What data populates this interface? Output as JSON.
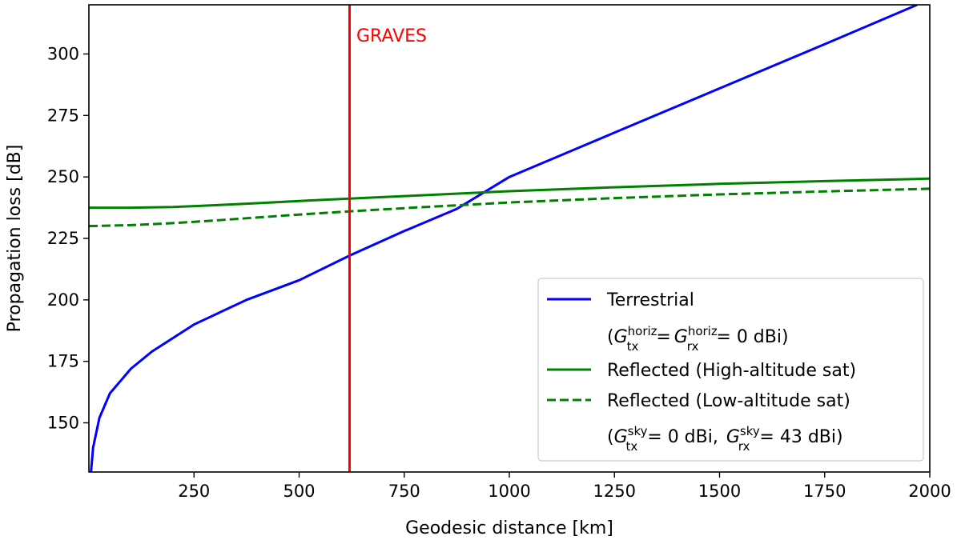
{
  "chart_data": {
    "type": "line",
    "title": "",
    "xlabel": "Geodesic distance [km]",
    "ylabel": "Propagation loss [dB]",
    "xlim": [
      0,
      2000
    ],
    "ylim": [
      130,
      320
    ],
    "xticks": [
      250,
      500,
      750,
      1000,
      1250,
      1500,
      1750,
      2000
    ],
    "yticks": [
      150,
      175,
      200,
      225,
      250,
      275,
      300
    ],
    "grid": false,
    "legend_position": "lower-right",
    "series": [
      {
        "name": "Terrestrial",
        "color": "#0000ff",
        "style": "solid",
        "x": [
          5,
          10,
          25,
          50,
          100,
          150,
          250,
          375,
          500,
          620,
          750,
          875,
          1000,
          1250,
          1500,
          1750,
          1970
        ],
        "y": [
          130,
          140,
          152,
          162,
          172,
          179,
          190,
          200,
          208,
          218,
          228,
          237,
          250,
          268,
          286,
          304,
          320
        ]
      },
      {
        "name": "Reflected (High-altitude sat)",
        "color": "#008000",
        "style": "solid",
        "x": [
          0,
          100,
          200,
          300,
          400,
          500,
          620,
          750,
          1000,
          1250,
          1500,
          1750,
          2000
        ],
        "y": [
          237.5,
          237.5,
          237.8,
          238.5,
          239.3,
          240.2,
          241.2,
          242.2,
          244.2,
          245.8,
          247.2,
          248.3,
          249.3
        ]
      },
      {
        "name": "Reflected (Low-altitude sat)",
        "color": "#008000",
        "style": "dashed",
        "x": [
          0,
          100,
          200,
          300,
          400,
          500,
          620,
          750,
          1000,
          1250,
          1500,
          1750,
          2000
        ],
        "y": [
          230,
          230.4,
          231.2,
          232.3,
          233.5,
          234.7,
          236.0,
          237.3,
          239.6,
          241.4,
          242.9,
          244.1,
          245.2
        ]
      }
    ],
    "annotations": [
      {
        "type": "vline",
        "x": 620,
        "color": "#ff0000",
        "label": "GRAVES"
      }
    ],
    "legend": {
      "terrestrial_label": "Terrestrial",
      "terrestrial_note": {
        "open": "(",
        "g": "G",
        "tx": "tx",
        "rx": "rx",
        "sup": "horiz",
        "eq1": "=",
        "eq2": "= 0 dBi)"
      },
      "high_label": "Reflected (High-altitude sat)",
      "low_label": "Reflected (Low-altitude sat)",
      "reflected_note": {
        "open": "(",
        "g": "G",
        "tx": "tx",
        "rx": "rx",
        "sup": "sky",
        "eq_tx": "= 0 dBi,",
        "eq_rx": "= 43 dBi)"
      }
    }
  }
}
